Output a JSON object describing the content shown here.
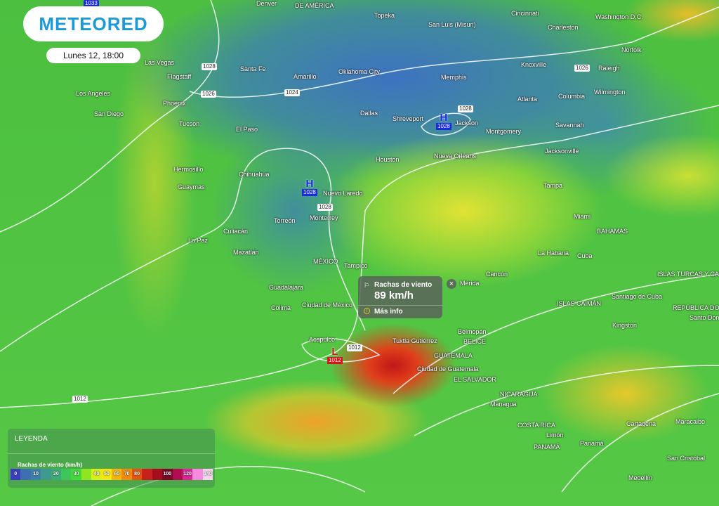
{
  "brand": {
    "logo": "METEORED",
    "date": "Lunes 12, 18:00"
  },
  "popup": {
    "title": "Rachas de viento",
    "value": "89 km/h",
    "more": "Más info",
    "close": "×",
    "icon": "wind-flag-icon"
  },
  "legend": {
    "title": "LEYENDA",
    "subtitle": "Rachas de viento (km/h)",
    "stops": [
      {
        "label": "0",
        "color": "#3b3fbf"
      },
      {
        "label": "",
        "color": "#3f6fb0"
      },
      {
        "label": "10",
        "color": "#3f80aa"
      },
      {
        "label": "",
        "color": "#3e9a8f"
      },
      {
        "label": "20",
        "color": "#3cab78"
      },
      {
        "label": "",
        "color": "#3ec65a"
      },
      {
        "label": "30",
        "color": "#43d93a"
      },
      {
        "label": "",
        "color": "#8ee520"
      },
      {
        "label": "40",
        "color": "#d8ee1a"
      },
      {
        "label": "50",
        "color": "#f5e512"
      },
      {
        "label": "60",
        "color": "#f5b511"
      },
      {
        "label": "70",
        "color": "#f28a10"
      },
      {
        "label": "80",
        "color": "#e35510"
      },
      {
        "label": "",
        "color": "#c8201a"
      },
      {
        "label": "",
        "color": "#a30f1e"
      },
      {
        "label": "100",
        "color": "#7d0a25"
      },
      {
        "label": "",
        "color": "#b10d52"
      },
      {
        "label": "120",
        "color": "#dd2796"
      },
      {
        "label": "",
        "color": "#f58ae0"
      },
      {
        "label": "140",
        "color": "#fad2f2"
      }
    ]
  },
  "pressure": {
    "highs": [
      {
        "letter": "H",
        "value": "1028"
      },
      {
        "letter": "H",
        "value": "1028"
      }
    ],
    "lows": [
      {
        "letter": "L",
        "value": "1012"
      }
    ],
    "isobar_labels": [
      "1033",
      "1028",
      "1026",
      "1024",
      "1026",
      "1028",
      "1028",
      "1012",
      "1012"
    ]
  },
  "cities": [
    "Denver",
    "Topeka",
    "Cincinnati",
    "Washington D.C.",
    "San Luis (Misuri)",
    "Charleston",
    "Norfolk",
    "Las Vegas",
    "Flagstaff",
    "Santa Fe",
    "Amarillo",
    "Oklahoma City",
    "Memphis",
    "Knoxville",
    "Raleigh",
    "Los Angeles",
    "Phoenix",
    "Atlanta",
    "Columbia",
    "Wilmington",
    "San Diego",
    "Dallas",
    "Shreveport",
    "Jackson",
    "Montgomery",
    "Tucson",
    "El Paso",
    "Savannah",
    "Jacksonville",
    "Houston",
    "Nueva Orleans",
    "Hermosillo",
    "Chihuahua",
    "Nuevo Laredo",
    "Tampa",
    "Guaymas",
    "Torreón",
    "Monterrey",
    "Miami",
    "Culiacán",
    "BAHAMAS",
    "La Paz",
    "Mazatlán",
    "MÉXICO",
    "Tampico",
    "La Habana",
    "Mérida",
    "Cancún",
    "ISLAS TURCAS Y CAICOS",
    "Guadalajara",
    "Santiago de Cuba",
    "ISLAS CAIMÁN",
    "Colima",
    "Ciudad de México",
    "REPÚBLICA DOMINICANA",
    "Santo Domingo",
    "Kingston",
    "Belmopán",
    "BELICE",
    "Acapulco",
    "Tuxtla Gutiérrez",
    "GUATEMALA",
    "Ciudad de Guatemala",
    "EL SALVADOR",
    "NICARAGUA",
    "Managua",
    "Maracaibo",
    "Cartagena",
    "COSTA RICA",
    "Limón",
    "PANAMÁ",
    "Panamá",
    "San Cristóbal",
    "Medellín",
    "DE AMÉRICA",
    "Cuba"
  ]
}
